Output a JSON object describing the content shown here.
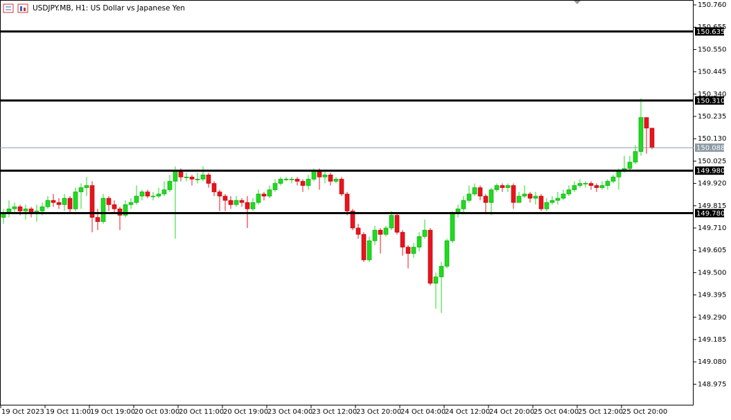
{
  "chart_data": {
    "type": "candlestick",
    "title": "USDJPY.MB, H1:  US Dollar vs Japanese Yen",
    "categories": [
      "19 Oct 2023",
      null,
      null,
      null,
      null,
      null,
      null,
      null,
      "19 Oct 11:00",
      null,
      null,
      null,
      null,
      null,
      null,
      null,
      "19 Oct 19:00",
      null,
      null,
      null,
      null,
      null,
      null,
      null,
      "20 Oct 03:00",
      null,
      null,
      null,
      null,
      null,
      null,
      null,
      "20 Oct 11:00",
      null,
      null,
      null,
      null,
      null,
      null,
      null,
      "20 Oct 19:00",
      null,
      null,
      null,
      null,
      null,
      null,
      null,
      "23 Oct 04:00",
      null,
      null,
      null,
      null,
      null,
      null,
      null,
      "23 Oct 12:00",
      null,
      null,
      null,
      null,
      null,
      null,
      null,
      "23 Oct 20:00",
      null,
      null,
      null,
      null,
      null,
      null,
      null,
      "24 Oct 04:00",
      null,
      null,
      null,
      null,
      null,
      null,
      null,
      "24 Oct 12:00",
      null,
      null,
      null,
      null,
      null,
      null,
      null,
      "24 Oct 20:00",
      null,
      null,
      null,
      null,
      null,
      null,
      null,
      "25 Oct 04:00",
      null,
      null,
      null,
      null,
      null,
      null,
      null,
      "25 Oct 12:00",
      null,
      null,
      null,
      null,
      null,
      null,
      null,
      "25 Oct 20:00",
      null,
      null,
      null,
      null,
      null
    ],
    "open": [
      149.76,
      149.78,
      149.8,
      149.81,
      149.79,
      149.8,
      149.78,
      149.79,
      149.81,
      149.84,
      149.83,
      149.82,
      149.85,
      149.8,
      149.88,
      149.9,
      149.91,
      149.76,
      149.74,
      149.85,
      149.82,
      149.8,
      149.77,
      149.82,
      149.83,
      149.86,
      149.88,
      149.86,
      149.86,
      149.87,
      149.89,
      149.93,
      149.98,
      149.95,
      149.95,
      149.94,
      149.94,
      149.96,
      149.92,
      149.88,
      149.86,
      149.84,
      149.82,
      149.84,
      149.83,
      149.8,
      149.83,
      149.87,
      149.86,
      149.89,
      149.92,
      149.94,
      149.94,
      149.94,
      149.93,
      149.91,
      149.94,
      149.98,
      149.95,
      149.96,
      149.93,
      149.94,
      149.87,
      149.79,
      149.71,
      149.68,
      149.56,
      149.65,
      149.7,
      149.68,
      149.71,
      149.77,
      149.69,
      149.62,
      149.59,
      149.62,
      149.67,
      149.7,
      149.45,
      149.48,
      149.53,
      149.65,
      149.78,
      149.8,
      149.84,
      149.87,
      149.9,
      149.86,
      149.83,
      149.89,
      149.91,
      149.9,
      149.91,
      149.83,
      149.86,
      149.87,
      149.85,
      149.86,
      149.8,
      149.83,
      149.84,
      149.85,
      149.87,
      149.89,
      149.91,
      149.92,
      149.92,
      149.91,
      149.9,
      149.91,
      149.93,
      149.95,
      149.98,
      149.99,
      150.02,
      150.07,
      150.23,
      150.18
    ],
    "high": [
      149.8,
      149.84,
      149.83,
      149.82,
      149.82,
      149.81,
      149.82,
      149.83,
      149.86,
      149.87,
      149.85,
      149.87,
      149.86,
      149.9,
      149.92,
      149.95,
      149.93,
      149.8,
      149.87,
      149.86,
      149.84,
      149.81,
      149.84,
      149.85,
      149.91,
      149.89,
      149.89,
      149.88,
      149.9,
      149.93,
      149.96,
      150.0,
      149.99,
      149.97,
      149.96,
      149.97,
      150.0,
      149.97,
      149.93,
      149.89,
      149.87,
      149.86,
      149.86,
      149.85,
      149.86,
      149.85,
      149.89,
      149.88,
      149.91,
      149.94,
      149.95,
      149.95,
      149.95,
      149.95,
      149.94,
      149.96,
      149.99,
      149.99,
      149.98,
      149.97,
      149.95,
      149.95,
      149.88,
      149.8,
      149.73,
      149.69,
      149.67,
      149.72,
      149.71,
      149.72,
      149.79,
      149.78,
      149.7,
      149.63,
      149.64,
      149.69,
      149.75,
      149.71,
      149.5,
      149.55,
      149.66,
      149.79,
      149.82,
      149.86,
      149.91,
      149.92,
      149.91,
      149.87,
      149.9,
      149.92,
      149.92,
      149.92,
      149.92,
      149.88,
      149.91,
      149.88,
      149.88,
      149.87,
      149.85,
      149.86,
      149.88,
      149.89,
      149.91,
      149.93,
      149.94,
      149.93,
      149.93,
      149.92,
      149.93,
      149.94,
      149.96,
      149.99,
      150.05,
      150.05,
      150.1,
      150.32,
      150.23,
      150.18
    ],
    "low": [
      149.73,
      149.76,
      149.78,
      149.77,
      149.75,
      149.76,
      149.74,
      149.77,
      149.8,
      149.81,
      149.8,
      149.79,
      149.78,
      149.79,
      149.8,
      149.86,
      149.69,
      149.7,
      149.73,
      149.79,
      149.78,
      149.7,
      149.76,
      149.8,
      149.82,
      149.84,
      149.85,
      149.84,
      149.85,
      149.86,
      149.88,
      149.66,
      149.93,
      149.93,
      149.91,
      149.92,
      149.93,
      149.9,
      149.86,
      149.79,
      149.79,
      149.8,
      149.81,
      149.81,
      149.71,
      149.79,
      149.82,
      149.84,
      149.85,
      149.88,
      149.91,
      149.93,
      149.92,
      149.91,
      149.88,
      149.89,
      149.93,
      149.89,
      149.92,
      149.91,
      149.92,
      149.86,
      149.77,
      149.7,
      149.66,
      149.55,
      149.55,
      149.63,
      149.59,
      149.67,
      149.7,
      149.68,
      149.58,
      149.52,
      149.57,
      149.6,
      149.66,
      149.44,
      149.33,
      149.31,
      149.52,
      149.64,
      149.76,
      149.78,
      149.83,
      149.86,
      149.84,
      149.78,
      149.77,
      149.88,
      149.88,
      149.88,
      149.8,
      149.83,
      149.85,
      149.83,
      149.82,
      149.79,
      149.79,
      149.82,
      149.82,
      149.84,
      149.86,
      149.88,
      149.9,
      149.9,
      149.89,
      149.88,
      149.89,
      149.89,
      149.92,
      149.89,
      149.97,
      149.98,
      150.01,
      150.05,
      150.06,
      150.08
    ],
    "close": [
      149.78,
      149.8,
      149.81,
      149.79,
      149.8,
      149.78,
      149.79,
      149.81,
      149.84,
      149.83,
      149.82,
      149.85,
      149.8,
      149.88,
      149.9,
      149.91,
      149.76,
      149.74,
      149.85,
      149.82,
      149.8,
      149.77,
      149.82,
      149.83,
      149.86,
      149.88,
      149.86,
      149.86,
      149.87,
      149.89,
      149.93,
      149.98,
      149.95,
      149.95,
      149.94,
      149.94,
      149.96,
      149.92,
      149.88,
      149.86,
      149.84,
      149.82,
      149.84,
      149.83,
      149.8,
      149.83,
      149.87,
      149.86,
      149.89,
      149.92,
      149.94,
      149.94,
      149.94,
      149.93,
      149.91,
      149.94,
      149.98,
      149.95,
      149.96,
      149.93,
      149.94,
      149.87,
      149.79,
      149.71,
      149.68,
      149.56,
      149.65,
      149.7,
      149.68,
      149.71,
      149.77,
      149.69,
      149.62,
      149.59,
      149.62,
      149.67,
      149.7,
      149.45,
      149.48,
      149.53,
      149.65,
      149.78,
      149.8,
      149.84,
      149.87,
      149.9,
      149.86,
      149.83,
      149.89,
      149.91,
      149.9,
      149.91,
      149.83,
      149.86,
      149.87,
      149.85,
      149.86,
      149.8,
      149.83,
      149.84,
      149.85,
      149.87,
      149.89,
      149.91,
      149.92,
      149.92,
      149.91,
      149.9,
      149.91,
      149.93,
      149.95,
      149.98,
      149.99,
      150.02,
      150.07,
      150.23,
      150.18,
      150.088
    ],
    "up_color": "#1edc1e",
    "down_color": "#e8141e",
    "ylim": [
      148.875,
      150.783
    ],
    "yticks": [
      {
        "value": 150.76,
        "label": "150.760"
      },
      150.655,
      {
        "value": 150.55,
        "label": "150.550"
      },
      150.445,
      {
        "value": 150.34,
        "label": "150.340"
      },
      150.235,
      {
        "value": 150.13,
        "label": "150.130"
      },
      150.025,
      {
        "value": 149.92,
        "label": "149.920"
      },
      149.815,
      {
        "value": 149.71,
        "label": "149.710"
      },
      149.605,
      {
        "value": 149.5,
        "label": "149.500"
      },
      149.395,
      {
        "value": 149.29,
        "label": "149.290"
      },
      149.185,
      {
        "value": 149.08,
        "label": "149.080"
      },
      148.975
    ],
    "levels": [
      150.635,
      {
        "value": 150.31,
        "label": "150.310"
      },
      {
        "value": 149.98,
        "label": "149.980"
      },
      {
        "value": 149.78,
        "label": "149.780"
      }
    ],
    "level_color": "#000000",
    "current_price": 150.088,
    "current_price_color": "#8c9aa4"
  }
}
